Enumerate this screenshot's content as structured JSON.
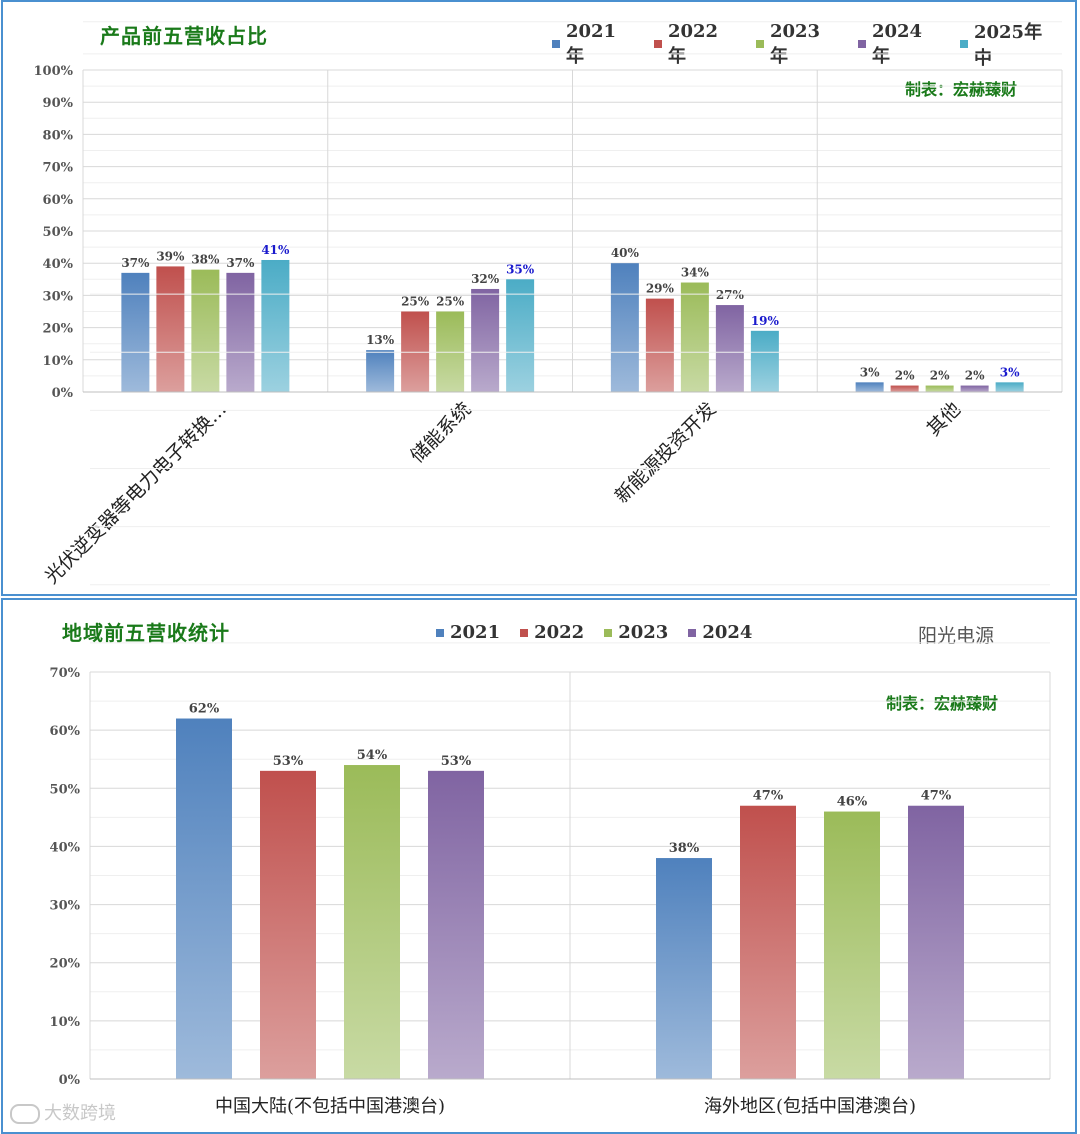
{
  "chart_data": [
    {
      "type": "bar",
      "title": "产品前五营收占比",
      "maker": "制表：宏赫臻财",
      "categories": [
        "光伏逆变器等电力电子转换…",
        "储能系统",
        "新能源投资开发",
        "其他"
      ],
      "ylim": [
        0,
        100
      ],
      "yticks": [
        "0%",
        "10%",
        "20%",
        "30%",
        "40%",
        "50%",
        "60%",
        "70%",
        "80%",
        "90%",
        "100%"
      ],
      "grid": true,
      "legend_position": "top-right",
      "series": [
        {
          "name": "2021年",
          "values": [
            37,
            13,
            40,
            3
          ],
          "labels": [
            "37%",
            "13%",
            "40%",
            "3%"
          ],
          "color": "#4f81bd"
        },
        {
          "name": "2022年",
          "values": [
            39,
            25,
            29,
            2
          ],
          "labels": [
            "39%",
            "25%",
            "29%",
            "2%"
          ],
          "color": "#c0504d"
        },
        {
          "name": "2023年",
          "values": [
            38,
            25,
            34,
            2
          ],
          "labels": [
            "38%",
            "25%",
            "34%",
            "2%"
          ],
          "color": "#9bbb59"
        },
        {
          "name": "2024年",
          "values": [
            37,
            32,
            27,
            2
          ],
          "labels": [
            "37%",
            "32%",
            "27%",
            "2%"
          ],
          "color": "#8064a2"
        },
        {
          "name": "2025年中",
          "values": [
            41,
            35,
            19,
            3
          ],
          "labels": [
            "41%",
            "35%",
            "19%",
            "3%"
          ],
          "color": "#4bacc6"
        }
      ],
      "highlight_label_color": "#1a1acd"
    },
    {
      "type": "bar",
      "title": "地域前五营收统计",
      "brand": "阳光电源",
      "maker": "制表：宏赫臻财",
      "categories": [
        "中国大陆(不包括中国港澳台)",
        "海外地区(包括中国港澳台)"
      ],
      "ylim": [
        0,
        70
      ],
      "yticks": [
        "0%",
        "10%",
        "20%",
        "30%",
        "40%",
        "50%",
        "60%",
        "70%"
      ],
      "grid": true,
      "legend_position": "top-center",
      "series": [
        {
          "name": "2021",
          "values": [
            62,
            38
          ],
          "labels": [
            "62%",
            "38%"
          ],
          "color": "#4f81bd"
        },
        {
          "name": "2022",
          "values": [
            53,
            47
          ],
          "labels": [
            "53%",
            "47%"
          ],
          "color": "#c0504d"
        },
        {
          "name": "2023",
          "values": [
            54,
            46
          ],
          "labels": [
            "54%",
            "46%"
          ],
          "color": "#9bbb59"
        },
        {
          "name": "2024",
          "values": [
            53,
            47
          ],
          "labels": [
            "53%",
            "47%"
          ],
          "color": "#8064a2"
        }
      ]
    }
  ],
  "watermark": "大数跨境"
}
